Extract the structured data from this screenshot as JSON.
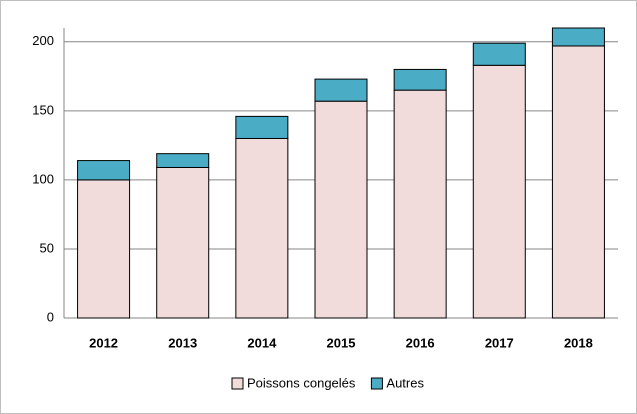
{
  "chart_data": {
    "type": "stacked_bar",
    "categories": [
      "2012",
      "2013",
      "2014",
      "2015",
      "2016",
      "2017",
      "2018"
    ],
    "series": [
      {
        "name": "Poissons congelés",
        "color": "#f2dcdb",
        "values": [
          100,
          109,
          130,
          157,
          165,
          183,
          197
        ]
      },
      {
        "name": "Autres",
        "color": "#4bacc6",
        "values": [
          14,
          10,
          16,
          16,
          15,
          16,
          13
        ]
      }
    ],
    "ylim": [
      0,
      210
    ],
    "yticks": [
      0,
      50,
      100,
      150,
      200
    ],
    "grid": true,
    "legend": "bottom"
  }
}
